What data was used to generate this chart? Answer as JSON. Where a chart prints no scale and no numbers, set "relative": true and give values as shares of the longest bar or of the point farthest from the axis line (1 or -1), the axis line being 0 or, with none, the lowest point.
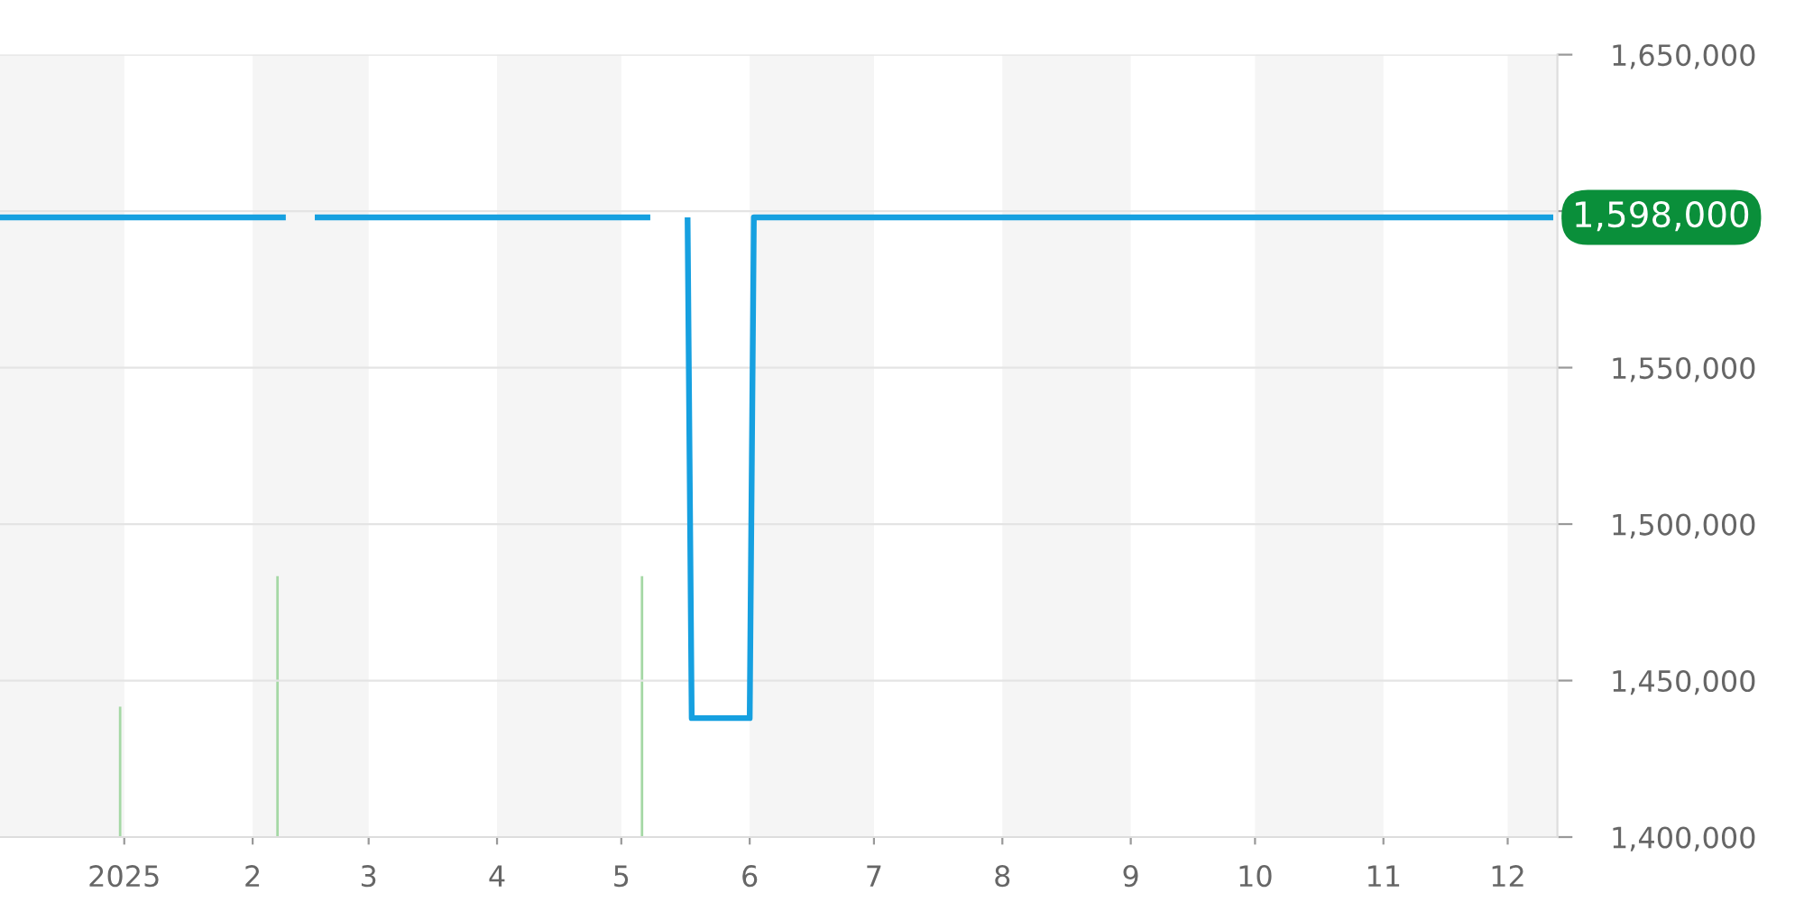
{
  "chart_data": [
    {
      "type": "line",
      "series": [
        {
          "color": "#16a0e0",
          "x": [
            "2024-12-02",
            "2025-02-09",
            "2025-02-12",
            "2025-02-16",
            "2025-05-08",
            "2025-05-12",
            "2025-05-17",
            "2025-05-18",
            "2025-06-01",
            "2025-06-02",
            "2025-12-12"
          ],
          "values": [
            1598000,
            1598000,
            null,
            1598000,
            1598000,
            null,
            1598000,
            1438000,
            1438000,
            1598000,
            1598000
          ]
        }
      ],
      "xlim": [
        "2024-12-02",
        "2025-12-13"
      ],
      "ylim": [
        1400000,
        1650000
      ],
      "xticks": [
        {
          "value": "2025-01-01",
          "label": "2025"
        },
        {
          "value": "2025-02-01",
          "label": "2"
        },
        {
          "value": "2025-03-01",
          "label": "3"
        },
        {
          "value": "2025-04-01",
          "label": "4"
        },
        {
          "value": "2025-05-01",
          "label": "5"
        },
        {
          "value": "2025-06-01",
          "label": "6"
        },
        {
          "value": "2025-07-01",
          "label": "7"
        },
        {
          "value": "2025-08-01",
          "label": "8"
        },
        {
          "value": "2025-09-01",
          "label": "9"
        },
        {
          "value": "2025-10-01",
          "label": "10"
        },
        {
          "value": "2025-11-01",
          "label": "11"
        },
        {
          "value": "2025-12-01",
          "label": "12"
        }
      ],
      "yticks": [
        {
          "value": 1400000,
          "label": "1,400,000"
        },
        {
          "value": 1450000,
          "label": "1,450,000"
        },
        {
          "value": 1500000,
          "label": "1,500,000"
        },
        {
          "value": 1550000,
          "label": "1,550,000"
        },
        {
          "value": 1600000,
          "label": null
        },
        {
          "value": 1650000,
          "label": "1,650,000"
        }
      ],
      "grid": "y",
      "bands": [
        {
          "axis": "x",
          "from": "2024-12-02",
          "to": "2025-01-01",
          "color": "#f5f5f5"
        },
        {
          "axis": "x",
          "from": "2025-02-01",
          "to": "2025-03-01",
          "color": "#f5f5f5"
        },
        {
          "axis": "x",
          "from": "2025-04-01",
          "to": "2025-05-01",
          "color": "#f5f5f5"
        },
        {
          "axis": "x",
          "from": "2025-06-01",
          "to": "2025-07-01",
          "color": "#f5f5f5"
        },
        {
          "axis": "x",
          "from": "2025-08-01",
          "to": "2025-09-01",
          "color": "#f5f5f5"
        },
        {
          "axis": "x",
          "from": "2025-10-01",
          "to": "2025-11-01",
          "color": "#f5f5f5"
        },
        {
          "axis": "x",
          "from": "2025-12-01",
          "to": "2025-12-13",
          "color": "#f5f5f5"
        }
      ],
      "annotations": [
        {
          "text": "1,598,000",
          "x": "2025-12-12",
          "y": 1598000
        }
      ]
    },
    {
      "type": "bar",
      "relative": true,
      "color": "#a5d8a5",
      "x": [
        "2024-12-31",
        "2025-02-07",
        "2025-05-06"
      ],
      "values": [
        0.5,
        1,
        1
      ],
      "xlim": [
        "2024-12-02",
        "2025-12-13"
      ]
    }
  ]
}
